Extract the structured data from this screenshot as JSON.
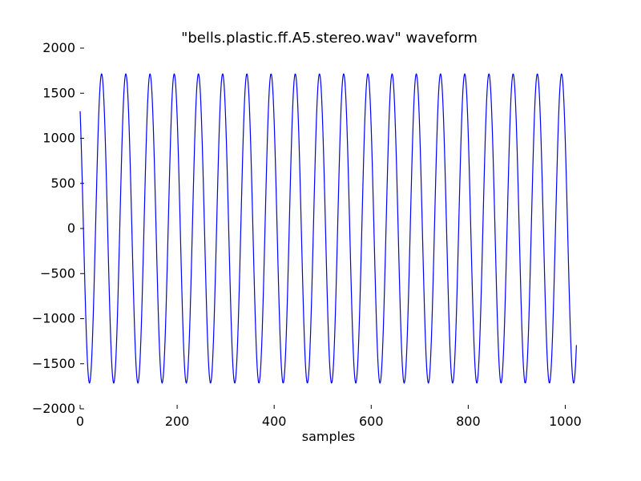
{
  "chart_data": {
    "type": "line",
    "title": "\"bells.plastic.ff.A5.stereo.wav\" waveform",
    "xlabel": "samples",
    "ylabel": "",
    "xlim": [
      0,
      1024
    ],
    "ylim": [
      -2000,
      2000
    ],
    "x_ticks": [
      0,
      200,
      400,
      600,
      800,
      1000
    ],
    "y_ticks": [
      -2000,
      -1500,
      -1000,
      -500,
      0,
      500,
      1000,
      1500,
      2000
    ],
    "x_tick_labels": [
      "0",
      "200",
      "400",
      "600",
      "800",
      "1000"
    ],
    "y_tick_labels": [
      "−2000",
      "−1500",
      "−1000",
      "−500",
      "0",
      "500",
      "1000",
      "1500",
      "2000"
    ],
    "grid": false,
    "color": "#0000ff",
    "series": [
      {
        "name": "",
        "x_start": 0,
        "x_end": 1023,
        "num_samples": 1024,
        "waveform": "sinusoid",
        "amplitude": 1715,
        "period_samples": 49.9,
        "start_value": 1300,
        "end_value": -1040,
        "first_min_sample": 19,
        "first_max_sample": 44
      }
    ]
  }
}
